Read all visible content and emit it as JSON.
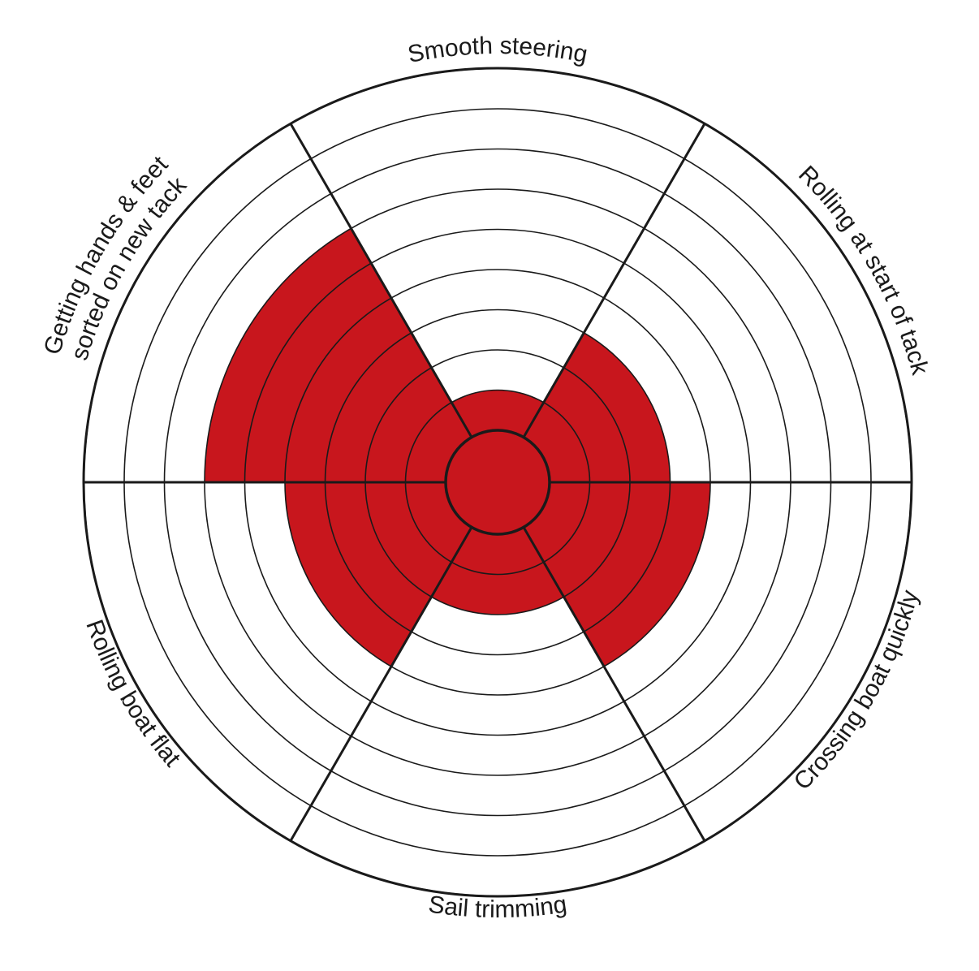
{
  "chart_data": {
    "type": "radial-segment-wheel",
    "scale_max": 10,
    "grid": true,
    "fill_color": "#c8161d",
    "line_color": "#1a1a1a",
    "background": "#ffffff",
    "segments": [
      {
        "name": "Smooth steering",
        "value": 2
      },
      {
        "name": "Rolling at start of tack",
        "value": 4
      },
      {
        "name": "Crossing boat quickly",
        "value": 5
      },
      {
        "name": "Sail trimming",
        "value": 3
      },
      {
        "name": "Rolling boat flat",
        "value": 5
      },
      {
        "name": "Getting hands & feet sorted on new tack",
        "label_lines": [
          "Getting hands & feet",
          "sorted on new tack"
        ],
        "value": 7
      }
    ]
  }
}
